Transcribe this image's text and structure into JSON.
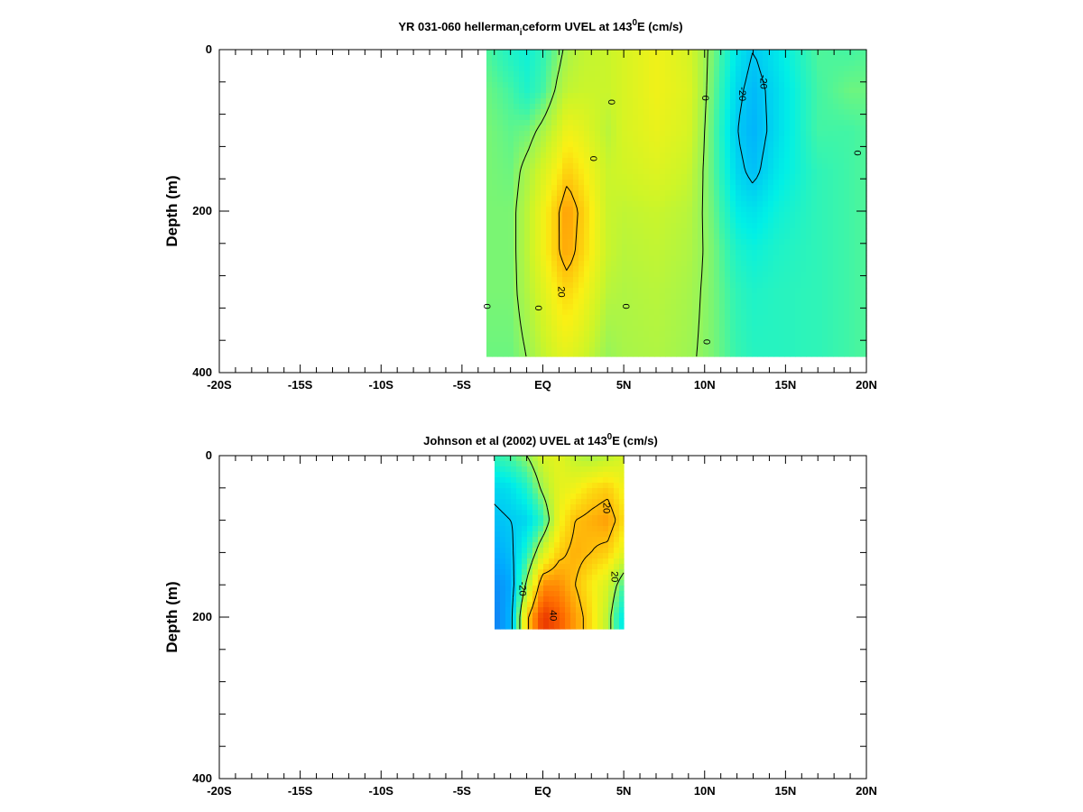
{
  "chart_data": [
    {
      "type": "heatmap",
      "title_main": "YR 031-060 hellerman",
      "title_sub": "i",
      "title_mid": "ceform UVEL at 143",
      "title_sup": "0",
      "title_end": "E (cm/s)",
      "ylabel": "Depth (m)",
      "xlim": [
        -20,
        20
      ],
      "ylim": [
        0,
        400
      ],
      "x_ticks": [
        -20,
        -15,
        -10,
        -5,
        0,
        5,
        10,
        15,
        20
      ],
      "x_tick_labels": [
        "-20S",
        "-15S",
        "-10S",
        "-5S",
        "EQ",
        "5N",
        "10N",
        "15N",
        "20N"
      ],
      "y_ticks": [
        0,
        200,
        400
      ],
      "y_tick_labels": [
        "0",
        "200",
        "400"
      ],
      "data_extent": {
        "x": [
          -3.5,
          20
        ],
        "depth": [
          0,
          380
        ]
      },
      "color_scale": {
        "min": -40,
        "max": 40
      },
      "x": [
        -3.5,
        -2,
        -1,
        0,
        1,
        1.5,
        2.5,
        4,
        5,
        7,
        9,
        10.5,
        12,
        13,
        14.5,
        17,
        19,
        20
      ],
      "depth": [
        0,
        50,
        100,
        150,
        200,
        250,
        300,
        380
      ],
      "values": [
        [
          -5,
          -10,
          -12,
          -8,
          -2,
          2,
          5,
          6,
          8,
          12,
          8,
          -2,
          -15,
          -20,
          -15,
          -5,
          -6,
          -5
        ],
        [
          -3,
          -6,
          -10,
          -6,
          2,
          5,
          6,
          6,
          8,
          12,
          9,
          -3,
          -18,
          -23,
          -17,
          -6,
          -3,
          -3
        ],
        [
          -2,
          -4,
          -3,
          2,
          8,
          12,
          10,
          4,
          8,
          11,
          8,
          -4,
          -20,
          -24,
          -17,
          -6,
          -6,
          -5
        ],
        [
          -2,
          -3,
          2,
          8,
          14,
          18,
          14,
          6,
          7,
          9,
          6,
          -4,
          -18,
          -22,
          -15,
          -8,
          -6,
          -5
        ],
        [
          -2,
          -2,
          4,
          12,
          20,
          24,
          18,
          6,
          5,
          6,
          4,
          -3,
          -14,
          -16,
          -12,
          -8,
          -6,
          -5
        ],
        [
          -2,
          -2,
          4,
          12,
          20,
          23,
          17,
          6,
          4,
          5,
          3,
          -2,
          -10,
          -12,
          -10,
          -8,
          -6,
          -5
        ],
        [
          -2,
          -2,
          3,
          9,
          15,
          17,
          13,
          4,
          3,
          4,
          2,
          -2,
          -8,
          -10,
          -9,
          -8,
          -6,
          -5
        ],
        [
          -3,
          -3,
          0,
          5,
          9,
          10,
          7,
          0,
          2,
          3,
          1,
          -2,
          -7,
          -9,
          -9,
          -8,
          -6,
          -5
        ]
      ],
      "contour_labels": [
        {
          "text": "0",
          "x": 4.2,
          "depth": 65
        },
        {
          "text": "0",
          "x": 10,
          "depth": 60
        },
        {
          "text": "-20",
          "x": 12.3,
          "depth": 55
        },
        {
          "text": "-20",
          "x": 13.6,
          "depth": 40
        },
        {
          "text": "0",
          "x": 3.1,
          "depth": 135
        },
        {
          "text": "0",
          "x": 19.4,
          "depth": 128
        },
        {
          "text": "20",
          "x": 1.1,
          "depth": 300
        },
        {
          "text": "0",
          "x": -3.5,
          "depth": 318
        },
        {
          "text": "0",
          "x": -0.3,
          "depth": 320
        },
        {
          "text": "0",
          "x": 5.1,
          "depth": 318
        },
        {
          "text": "0",
          "x": 10.1,
          "depth": 362
        }
      ]
    },
    {
      "type": "heatmap",
      "title_main": "Johnson et al (2002) UVEL at 143",
      "title_sup": "0",
      "title_end": "E (cm/s)",
      "ylabel": "Depth (m)",
      "xlim": [
        -20,
        20
      ],
      "ylim": [
        0,
        400
      ],
      "x_ticks": [
        -20,
        -15,
        -10,
        -5,
        0,
        5,
        10,
        15,
        20
      ],
      "x_tick_labels": [
        "-20S",
        "-15S",
        "-10S",
        "-5S",
        "EQ",
        "5N",
        "10N",
        "15N",
        "20N"
      ],
      "y_ticks": [
        0,
        200,
        400
      ],
      "y_tick_labels": [
        "0",
        "200",
        "400"
      ],
      "data_extent": {
        "x": [
          -3,
          5
        ],
        "depth": [
          0,
          215
        ]
      },
      "color_scale": {
        "min": -40,
        "max": 40
      },
      "x": [
        -3,
        -2,
        -1,
        0,
        1,
        2,
        3,
        4,
        5
      ],
      "depth": [
        0,
        40,
        80,
        120,
        160,
        200
      ],
      "values": [
        [
          -8,
          -5,
          0,
          8,
          10,
          4,
          2,
          4,
          8
        ],
        [
          -18,
          -16,
          -10,
          2,
          10,
          12,
          16,
          18,
          12
        ],
        [
          -22,
          -20,
          -18,
          -8,
          12,
          20,
          22,
          24,
          16
        ],
        [
          -26,
          -22,
          -10,
          8,
          18,
          22,
          20,
          18,
          10
        ],
        [
          -30,
          -26,
          2,
          26,
          26,
          20,
          14,
          8,
          -6
        ],
        [
          -32,
          -24,
          18,
          36,
          32,
          24,
          16,
          4,
          -16
        ]
      ],
      "contour_labels": [
        {
          "text": "20",
          "x": 3.9,
          "depth": 65
        },
        {
          "text": "20",
          "x": 4.4,
          "depth": 150
        },
        {
          "text": "-20",
          "x": -1.3,
          "depth": 165
        },
        {
          "text": "40",
          "x": 0.6,
          "depth": 198
        }
      ]
    }
  ]
}
